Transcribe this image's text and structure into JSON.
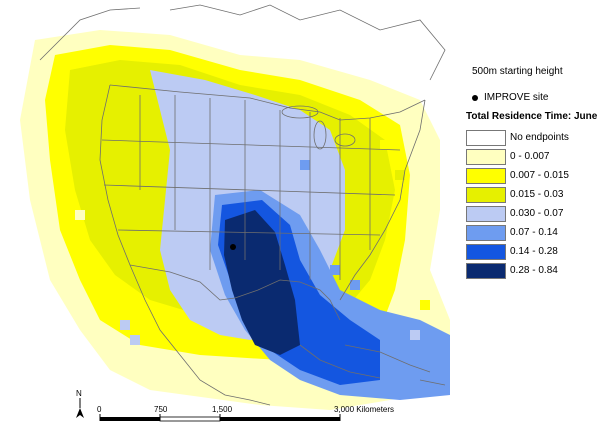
{
  "colors": {
    "c0": "#FFFFFF",
    "c1": "#FFFFC0",
    "c2": "#FFFF00",
    "c3": "#E6F000",
    "c4": "#BCCBF3",
    "c5": "#6E9CF0",
    "c6": "#1456E0",
    "c7": "#0A2A70",
    "boundary": "#6E6E6E"
  },
  "legend": {
    "height_label": "500m starting height",
    "improve_label": "IMPROVE site",
    "title": "Total Residence Time: June",
    "items": [
      {
        "label": "No endpoints",
        "color": "#FFFFFF"
      },
      {
        "label": "0 - 0.007",
        "color": "#FFFFC0"
      },
      {
        "label": "0.007 - 0.015",
        "color": "#FFFF00"
      },
      {
        "label": "0.015 - 0.03",
        "color": "#E6F000"
      },
      {
        "label": "0.030 - 0.07",
        "color": "#BCCBF3"
      },
      {
        "label": "0.07 - 0.14",
        "color": "#6E9CF0"
      },
      {
        "label": "0.14 - 0.28",
        "color": "#1456E0"
      },
      {
        "label": "0.28 - 0.84",
        "color": "#0A2A70"
      }
    ]
  },
  "scalebar": {
    "north": "N",
    "ticks": [
      "0",
      "750",
      "1,500",
      "3,000 Kilometers"
    ]
  }
}
